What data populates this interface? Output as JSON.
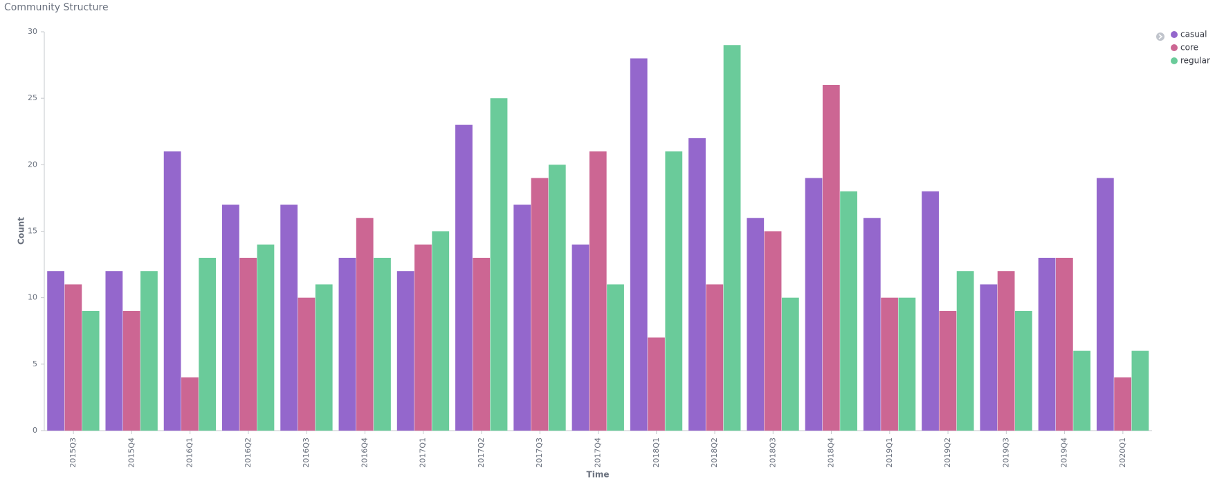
{
  "chart_data": {
    "type": "bar",
    "title": "Community Structure",
    "x_label": "Time",
    "y_label": "Count",
    "categories": [
      "2015Q3",
      "2015Q4",
      "2016Q1",
      "2016Q2",
      "2016Q3",
      "2016Q4",
      "2017Q1",
      "2017Q2",
      "2017Q3",
      "2017Q4",
      "2018Q1",
      "2018Q2",
      "2018Q3",
      "2018Q4",
      "2019Q1",
      "2019Q2",
      "2019Q3",
      "2019Q4",
      "2020Q1"
    ],
    "series": [
      {
        "name": "casual",
        "color": "#9467cc",
        "values": [
          12,
          12,
          21,
          17,
          17,
          13,
          12,
          23,
          17,
          14,
          28,
          22,
          16,
          19,
          16,
          18,
          11,
          13,
          19
        ]
      },
      {
        "name": "core",
        "color": "#cc6693",
        "values": [
          11,
          9,
          4,
          13,
          10,
          16,
          14,
          13,
          19,
          21,
          7,
          11,
          15,
          26,
          10,
          9,
          12,
          13,
          4
        ]
      },
      {
        "name": "regular",
        "color": "#6acb9a",
        "values": [
          9,
          12,
          13,
          14,
          11,
          13,
          15,
          25,
          20,
          11,
          21,
          29,
          10,
          18,
          10,
          12,
          9,
          6,
          6
        ]
      }
    ],
    "ylim": [
      0,
      30
    ],
    "yticks": [
      0,
      5,
      10,
      15,
      20,
      25,
      30
    ],
    "grid": false,
    "legend": "top-right"
  }
}
